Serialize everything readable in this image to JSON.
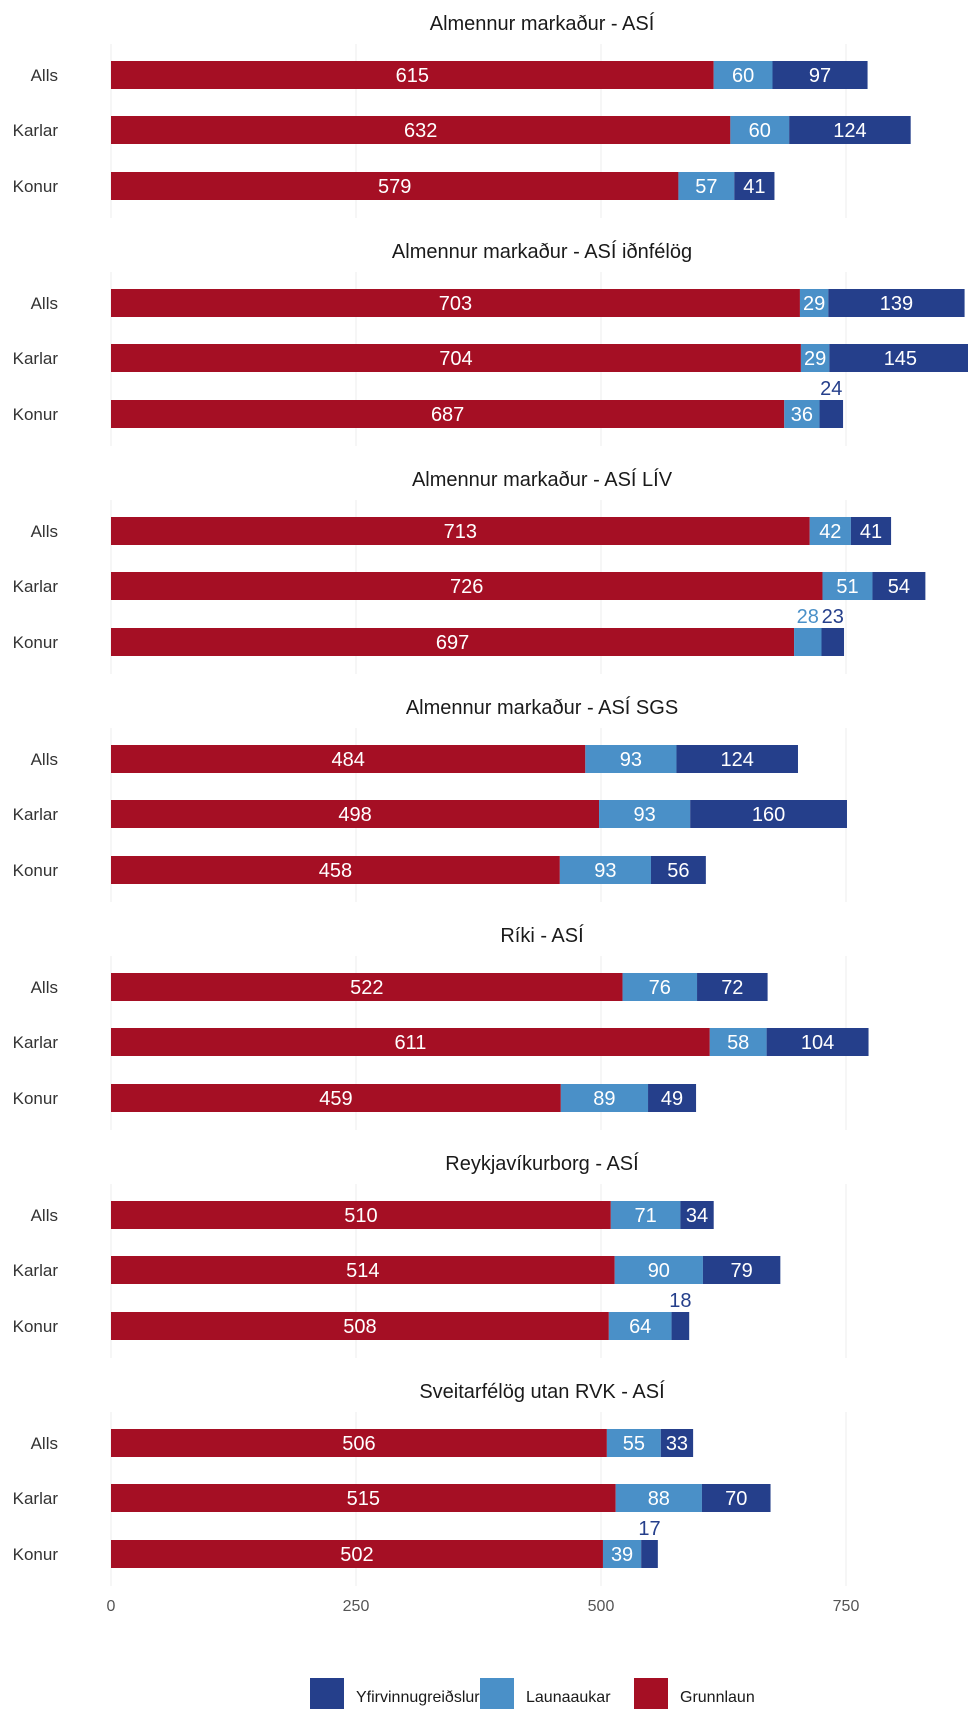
{
  "chart_data": {
    "type": "bar",
    "orientation": "horizontal",
    "stacked": true,
    "x_ticks": [
      0,
      250,
      500,
      750
    ],
    "xlim": [
      0,
      870
    ],
    "grid": true,
    "legend_position": "bottom",
    "colors": {
      "Grunnlaun": "#a50f24",
      "Launaaukar": "#4a90c8",
      "Yfirvinnugreiðslur": "#253f8b"
    },
    "legend": [
      "Yfirvinnugreiðslur",
      "Launaaukar",
      "Grunnlaun"
    ],
    "categories": [
      "Alls",
      "Karlar",
      "Konur"
    ],
    "stack_order": [
      "Grunnlaun",
      "Launaaukar",
      "Yfirvinnugreiðslur"
    ],
    "panels": [
      {
        "title": "Almennur markaður - ASÍ",
        "series": [
          {
            "name": "Grunnlaun",
            "values": [
              615,
              632,
              579
            ]
          },
          {
            "name": "Launaaukar",
            "values": [
              60,
              60,
              57
            ]
          },
          {
            "name": "Yfirvinnugreiðslur",
            "values": [
              97,
              124,
              41
            ]
          }
        ]
      },
      {
        "title": "Almennur markaður - ASÍ iðnfélög",
        "series": [
          {
            "name": "Grunnlaun",
            "values": [
              703,
              704,
              687
            ]
          },
          {
            "name": "Launaaukar",
            "values": [
              29,
              29,
              36
            ]
          },
          {
            "name": "Yfirvinnugreiðslur",
            "values": [
              139,
              145,
              24
            ]
          }
        ]
      },
      {
        "title": "Almennur markaður - ASÍ LÍV",
        "series": [
          {
            "name": "Grunnlaun",
            "values": [
              713,
              726,
              697
            ]
          },
          {
            "name": "Launaaukar",
            "values": [
              42,
              51,
              28
            ]
          },
          {
            "name": "Yfirvinnugreiðslur",
            "values": [
              41,
              54,
              23
            ]
          }
        ]
      },
      {
        "title": "Almennur markaður - ASÍ SGS",
        "series": [
          {
            "name": "Grunnlaun",
            "values": [
              484,
              498,
              458
            ]
          },
          {
            "name": "Launaaukar",
            "values": [
              93,
              93,
              93
            ]
          },
          {
            "name": "Yfirvinnugreiðslur",
            "values": [
              124,
              160,
              56
            ]
          }
        ]
      },
      {
        "title": "Ríki - ASÍ",
        "series": [
          {
            "name": "Grunnlaun",
            "values": [
              522,
              611,
              459
            ]
          },
          {
            "name": "Launaaukar",
            "values": [
              76,
              58,
              89
            ]
          },
          {
            "name": "Yfirvinnugreiðslur",
            "values": [
              72,
              104,
              49
            ]
          }
        ]
      },
      {
        "title": "Reykjavíkurborg - ASÍ",
        "series": [
          {
            "name": "Grunnlaun",
            "values": [
              510,
              514,
              508
            ]
          },
          {
            "name": "Launaaukar",
            "values": [
              71,
              90,
              64
            ]
          },
          {
            "name": "Yfirvinnugreiðslur",
            "values": [
              34,
              79,
              18
            ]
          }
        ]
      },
      {
        "title": "Sveitarfélög utan RVK - ASÍ",
        "series": [
          {
            "name": "Grunnlaun",
            "values": [
              506,
              515,
              502
            ]
          },
          {
            "name": "Launaaukar",
            "values": [
              55,
              88,
              39
            ]
          },
          {
            "name": "Yfirvinnugreiðslur",
            "values": [
              33,
              70,
              17
            ]
          }
        ]
      }
    ]
  }
}
